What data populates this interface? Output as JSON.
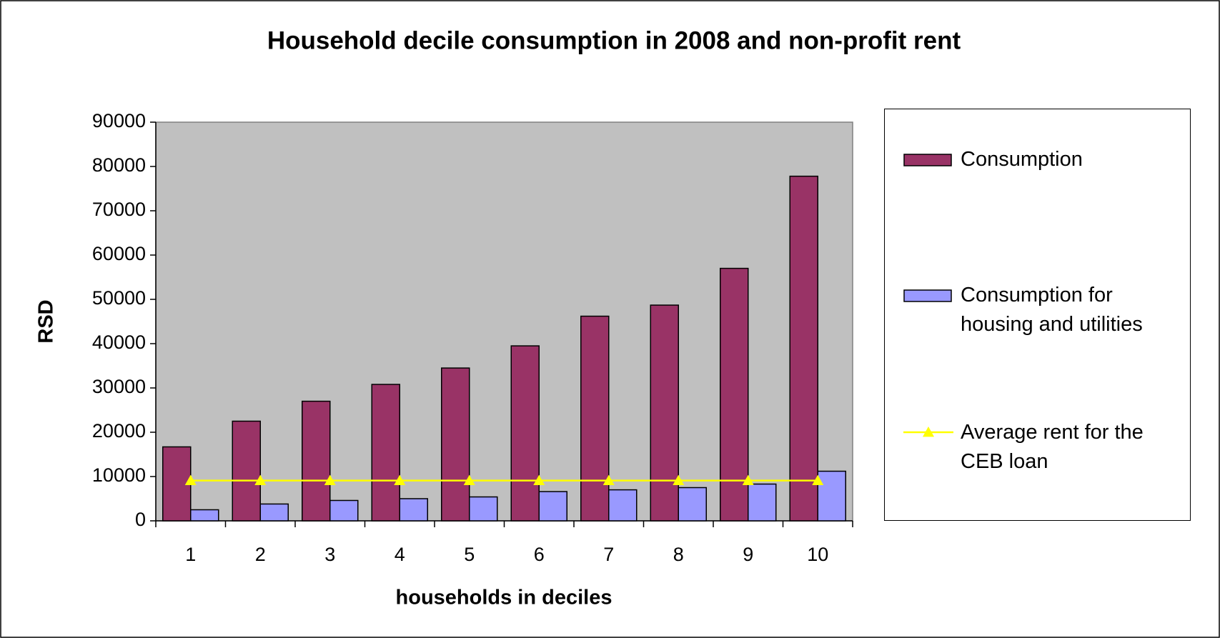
{
  "chart_data": {
    "type": "bar",
    "title": "Household decile consumption in 2008 and non-profit rent",
    "x_label": "households in deciles",
    "y_label": "RSD",
    "categories": [
      "1",
      "2",
      "3",
      "4",
      "5",
      "6",
      "7",
      "8",
      "9",
      "10"
    ],
    "series": [
      {
        "name": "Consumption",
        "color": "#993366",
        "values": [
          16700,
          22500,
          27000,
          30800,
          34500,
          39500,
          46200,
          48700,
          57000,
          77800
        ]
      },
      {
        "name": "Consumption for housing and utilities",
        "color": "#9999ff",
        "values": [
          2500,
          3800,
          4600,
          5000,
          5400,
          6600,
          7000,
          7500,
          8300,
          11200
        ]
      },
      {
        "name": "Average rent for the CEB loan",
        "color": "#ffff00",
        "type": "line",
        "values": [
          9100,
          9100,
          9100,
          9100,
          9100,
          9100,
          9100,
          9100,
          9100,
          9100
        ]
      }
    ],
    "ylim": [
      0,
      90000
    ],
    "yticks": [
      0,
      10000,
      20000,
      30000,
      40000,
      50000,
      60000,
      70000,
      80000,
      90000
    ],
    "grid": false,
    "plot_background": "#c0c0c0",
    "legend": "right"
  }
}
